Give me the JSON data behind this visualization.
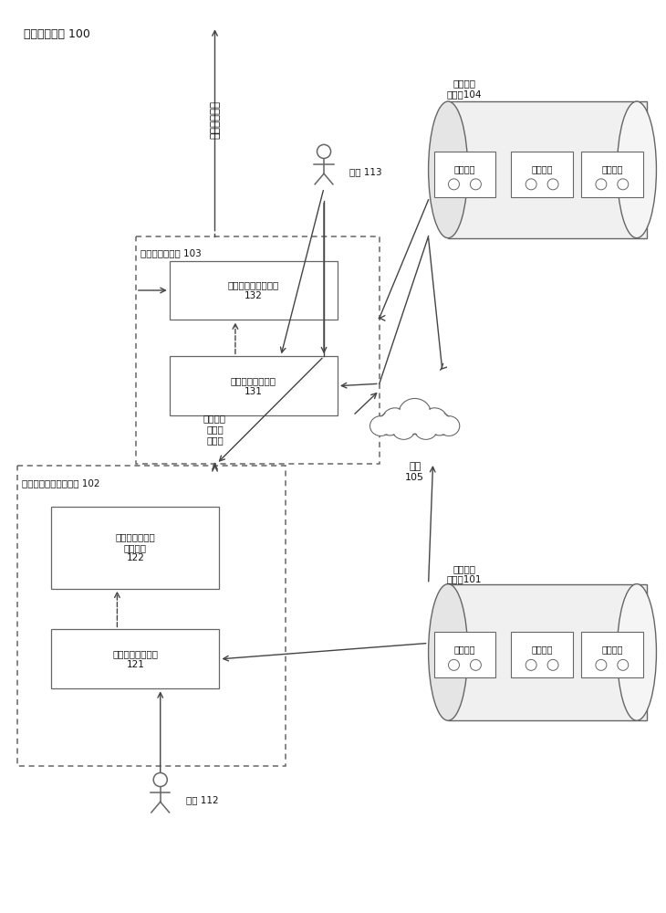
{
  "bg": "#ffffff",
  "ec": "#666666",
  "tc": "#111111",
  "ac": "#444444",
  "system_label": "图像分割系统 100",
  "unit103_label": "解剖学分类单元 103",
  "unit102_label": "解剖学分类器训练单元 102",
  "m131": "界标特征提取模块\n131",
  "m132": "解剖学结构分类模块\n132",
  "m121": "界标特征提取模块\n121",
  "m122": "基于界标特征的\n训练模块\n122",
  "trained": "训练好的\n解剖学\n分类器",
  "network": "网络\n105",
  "med_db": "医学图像\n数据库104",
  "train_db": "训练图像\n数据库101",
  "u113": "用户 113",
  "u112": "用户 112",
  "seg_out": "分割后的图像",
  "med_img": "医学图像",
  "train_img": "训练图像"
}
